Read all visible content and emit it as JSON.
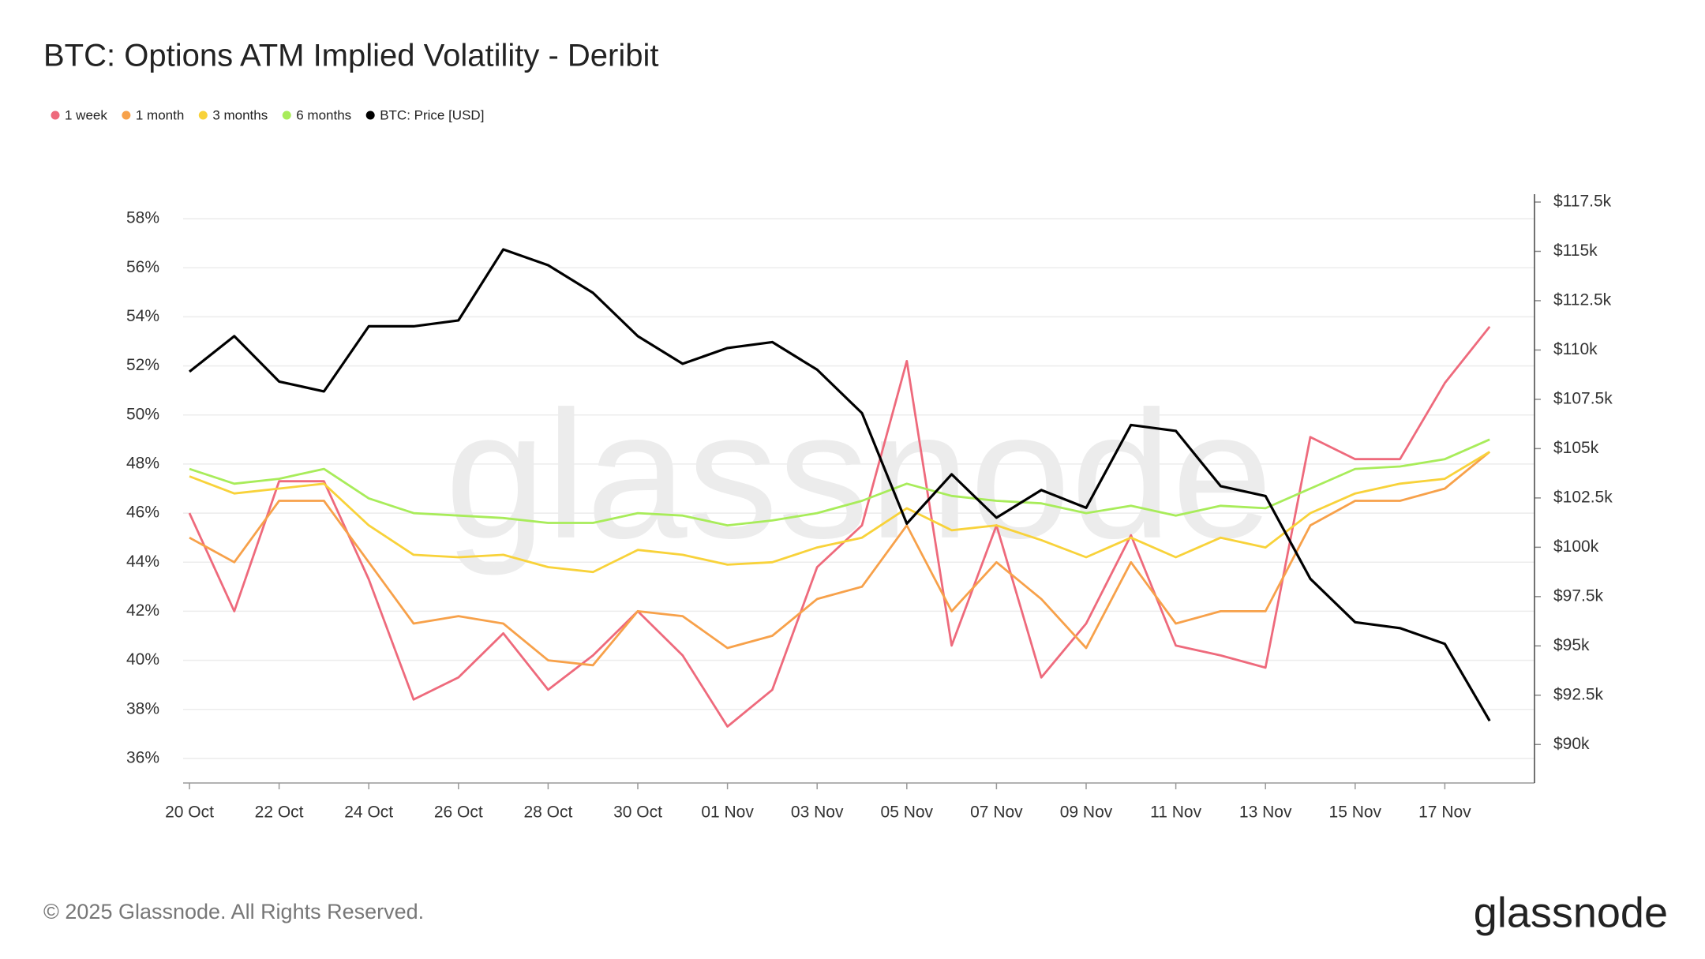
{
  "chart_data": {
    "type": "line",
    "title": "BTC: Options ATM Implied Volatility - Deribit",
    "watermark": "glassnode",
    "footer": "© 2025 Glassnode. All Rights Reserved.",
    "brand": "glassnode",
    "categories": [
      "20 Oct",
      null,
      "22 Oct",
      null,
      "24 Oct",
      null,
      "26 Oct",
      null,
      "28 Oct",
      null,
      "30 Oct",
      null,
      "01 Nov",
      null,
      "03 Nov",
      null,
      "05 Nov",
      null,
      "07 Nov",
      null,
      "09 Nov",
      null,
      "11 Nov",
      null,
      "13 Nov",
      null,
      "15 Nov",
      null,
      "17 Nov",
      null
    ],
    "series": [
      {
        "name": "1 week",
        "color": "#ee6a7c",
        "values": [
          46.0,
          42.0,
          47.3,
          47.3,
          43.3,
          38.4,
          39.3,
          41.1,
          38.8,
          40.2,
          42.0,
          40.2,
          37.3,
          38.8,
          43.8,
          45.5,
          52.2,
          40.6,
          45.5,
          39.3,
          41.5,
          45.1,
          40.6,
          40.2,
          39.7,
          49.1,
          48.2,
          48.2,
          51.3,
          53.6
        ]
      },
      {
        "name": "1 month",
        "color": "#f7a14a",
        "values": [
          45.0,
          44.0,
          46.5,
          46.5,
          44.0,
          41.5,
          41.8,
          41.5,
          40.0,
          39.8,
          42.0,
          41.8,
          40.5,
          41.0,
          42.5,
          43.0,
          45.5,
          42.0,
          44.0,
          42.5,
          40.5,
          44.0,
          41.5,
          42.0,
          42.0,
          45.5,
          46.5,
          46.5,
          47.0,
          48.5
        ]
      },
      {
        "name": "3 months",
        "color": "#f8d23a",
        "values": [
          47.5,
          46.8,
          47.0,
          47.2,
          45.5,
          44.3,
          44.2,
          44.3,
          43.8,
          43.6,
          44.5,
          44.3,
          43.9,
          44.0,
          44.6,
          45.0,
          46.2,
          45.3,
          45.5,
          44.9,
          44.2,
          45.0,
          44.2,
          45.0,
          44.6,
          46.0,
          46.8,
          47.2,
          47.4,
          48.5
        ]
      },
      {
        "name": "6 months",
        "color": "#a8ec5a",
        "values": [
          47.8,
          47.2,
          47.4,
          47.8,
          46.6,
          46.0,
          45.9,
          45.8,
          45.6,
          45.6,
          46.0,
          45.9,
          45.5,
          45.7,
          46.0,
          46.5,
          47.2,
          46.7,
          46.5,
          46.4,
          46.0,
          46.3,
          45.9,
          46.3,
          46.2,
          47.0,
          47.8,
          47.9,
          48.2,
          49.0
        ]
      },
      {
        "name": "BTC: Price [USD]",
        "color": "#000000",
        "axis": "y2",
        "values": [
          108900,
          110700,
          108400,
          107900,
          111200,
          111200,
          111500,
          115100,
          114300,
          112900,
          110700,
          109300,
          110100,
          110400,
          109000,
          106800,
          101200,
          103700,
          101500,
          102900,
          102000,
          106200,
          105900,
          103100,
          102600,
          98400,
          96200,
          95900,
          95100,
          91200
        ]
      }
    ],
    "ylim": [
      35.0,
      59.0
    ],
    "yticks": [
      {
        "value": 36,
        "label": "36%"
      },
      {
        "value": 38,
        "label": "38%"
      },
      {
        "value": 40,
        "label": "40%"
      },
      {
        "value": 42,
        "label": "42%"
      },
      {
        "value": 44,
        "label": "44%"
      },
      {
        "value": 46,
        "label": "46%"
      },
      {
        "value": 48,
        "label": "48%"
      },
      {
        "value": 50,
        "label": "50%"
      },
      {
        "value": 52,
        "label": "52%"
      },
      {
        "value": 54,
        "label": "54%"
      },
      {
        "value": 56,
        "label": "56%"
      },
      {
        "value": 58,
        "label": "58%"
      }
    ],
    "y2lim": [
      88050,
      117900
    ],
    "y2ticks": [
      {
        "value": 90000,
        "label": "$90k"
      },
      {
        "value": 92500,
        "label": "$92.5k"
      },
      {
        "value": 95000,
        "label": "$95k"
      },
      {
        "value": 97500,
        "label": "$97.5k"
      },
      {
        "value": 100000,
        "label": "$100k"
      },
      {
        "value": 102500,
        "label": "$102.5k"
      },
      {
        "value": 105000,
        "label": "$105k"
      },
      {
        "value": 107500,
        "label": "$107.5k"
      },
      {
        "value": 110000,
        "label": "$110k"
      },
      {
        "value": 112500,
        "label": "$112.5k"
      },
      {
        "value": 115000,
        "label": "$115k"
      },
      {
        "value": 117500,
        "label": "$117.5k"
      }
    ],
    "grid": true,
    "legend": "top-left"
  }
}
